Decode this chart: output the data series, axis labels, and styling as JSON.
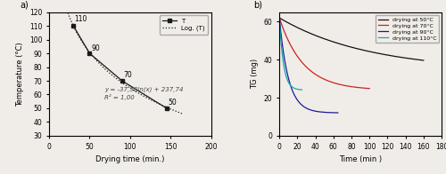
{
  "panel_a": {
    "data_x": [
      30,
      50,
      90,
      145
    ],
    "data_y": [
      110,
      90,
      70,
      50
    ],
    "labels": [
      "110",
      "90",
      "70",
      "50"
    ],
    "xlabel": "Drying time (min.)",
    "ylabel": "Temperature (°C)",
    "xlim": [
      0,
      200
    ],
    "ylim": [
      30,
      120
    ],
    "xticks": [
      0,
      50,
      100,
      150,
      200
    ],
    "yticks": [
      30,
      40,
      50,
      60,
      70,
      80,
      90,
      100,
      110,
      120
    ],
    "equation": "y = -37,58ln(x) + 237,74\nR² = 1,00",
    "eq_x": 68,
    "eq_y": 56,
    "legend_T": "T",
    "legend_log": "Log. (T)",
    "line_color": "#1a1a1a",
    "marker": "s",
    "marker_size": 3.5,
    "fit_a": -37.58,
    "fit_b": 237.74
  },
  "panel_b": {
    "xlabel": "Time (min )",
    "ylabel": "TG (mg)",
    "xlim": [
      0,
      180
    ],
    "ylim": [
      0,
      65
    ],
    "xticks": [
      0,
      20,
      40,
      60,
      80,
      100,
      120,
      140,
      160,
      180
    ],
    "yticks": [
      0,
      20,
      40,
      60
    ],
    "curves": [
      {
        "label": "drying at 50°C",
        "color": "#111111",
        "x_end": 160,
        "y_start": 62,
        "y_end": 34,
        "k": 0.01
      },
      {
        "label": "drying at 70°C",
        "color": "#cc2222",
        "x_end": 100,
        "y_start": 62,
        "y_end": 24,
        "k": 0.038
      },
      {
        "label": "drying at 90°C",
        "color": "#1a1a99",
        "x_end": 65,
        "y_start": 62,
        "y_end": 12,
        "k": 0.1
      },
      {
        "label": "drying at 110°C",
        "color": "#11aaaa",
        "x_end": 25,
        "y_start": 62,
        "y_end": 24,
        "k": 0.22
      }
    ]
  },
  "bg_color": "#f0ede8"
}
